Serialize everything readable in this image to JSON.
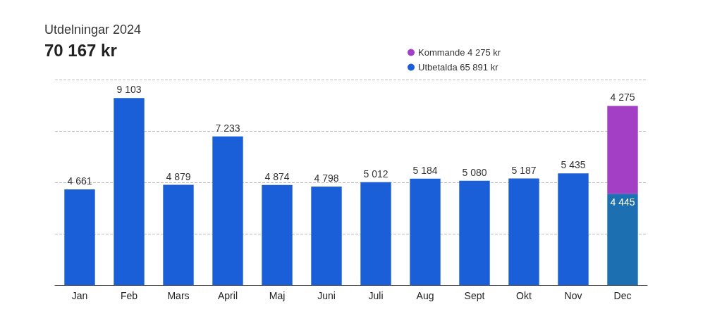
{
  "chart_data": {
    "type": "bar",
    "title": "Utdelningar 2024",
    "subtitle": "70 167 kr",
    "categories": [
      "Jan",
      "Feb",
      "Mars",
      "April",
      "Maj",
      "Juni",
      "Juli",
      "Aug",
      "Sept",
      "Okt",
      "Nov",
      "Dec"
    ],
    "stacked": true,
    "series": [
      {
        "name": "Utbetalda 65 891 kr",
        "color": "#1a5fd8",
        "colors": [
          "#1a5fd8",
          "#1a5fd8",
          "#1a5fd8",
          "#1a5fd8",
          "#1a5fd8",
          "#1a5fd8",
          "#1a5fd8",
          "#1a5fd8",
          "#1a5fd8",
          "#1a5fd8",
          "#1a5fd8",
          "#1c6fb0"
        ],
        "values": [
          4661,
          9103,
          4879,
          7233,
          4874,
          4798,
          5012,
          5184,
          5080,
          5187,
          5435,
          4445
        ],
        "value_labels": [
          "4 661",
          "9 103",
          "4 879",
          "7 233",
          "4 874",
          "4 798",
          "5 012",
          "5 184",
          "5 080",
          "5 187",
          "5 435",
          "4 445"
        ]
      },
      {
        "name": "Kommande 4 275 kr",
        "color": "#a23fc4",
        "values": [
          null,
          null,
          null,
          null,
          null,
          null,
          null,
          null,
          null,
          null,
          null,
          4275
        ],
        "value_labels": [
          null,
          null,
          null,
          null,
          null,
          null,
          null,
          null,
          null,
          null,
          null,
          "4 275"
        ]
      }
    ],
    "ylim": [
      0,
      10000
    ],
    "yticks": [
      {
        "value": 0,
        "label": null
      },
      {
        "value": 2500,
        "label": null
      },
      {
        "value": 5000,
        "label": null
      },
      {
        "value": 7500,
        "label": null
      },
      {
        "value": 10000,
        "label": null
      }
    ],
    "grid": "y",
    "legend": "top right"
  }
}
